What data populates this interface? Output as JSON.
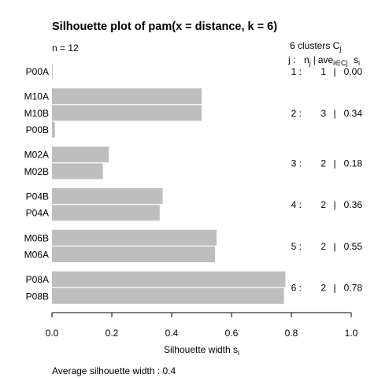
{
  "chart_data": {
    "type": "bar",
    "orientation": "horizontal",
    "title": "Silhouette plot of pam(x = distance, k = 6)",
    "n_label": "n = 12",
    "clusters_label": "6  clusters  C",
    "clusters_label_sub": "j",
    "col_header_j": "j :",
    "col_header_n": "n",
    "col_header_n_sub": "j",
    "col_header_ave": "ave",
    "col_header_ave_sub": "i∈Cj",
    "col_header_s": "s",
    "col_header_s_sub": "i",
    "xlabel": "Silhouette width s",
    "xlabel_sub": "i",
    "xlim": [
      0,
      1
    ],
    "xticks": [
      "0.0",
      "0.2",
      "0.4",
      "0.6",
      "0.8",
      "1.0"
    ],
    "xtick_values": [
      0,
      0.2,
      0.4,
      0.6,
      0.8,
      1.0
    ],
    "bar_color": "#bebebe",
    "items": [
      {
        "label": "P00A",
        "value": 0.0,
        "cluster": 1
      },
      {
        "label": "M10A",
        "value": 0.5,
        "cluster": 2
      },
      {
        "label": "M10B",
        "value": 0.5,
        "cluster": 2
      },
      {
        "label": "P00B",
        "value": 0.01,
        "cluster": 2
      },
      {
        "label": "M02A",
        "value": 0.19,
        "cluster": 3
      },
      {
        "label": "M02B",
        "value": 0.17,
        "cluster": 3
      },
      {
        "label": "P04B",
        "value": 0.37,
        "cluster": 4
      },
      {
        "label": "P04A",
        "value": 0.36,
        "cluster": 4
      },
      {
        "label": "M06B",
        "value": 0.55,
        "cluster": 5
      },
      {
        "label": "M06A",
        "value": 0.545,
        "cluster": 5
      },
      {
        "label": "P08A",
        "value": 0.78,
        "cluster": 6
      },
      {
        "label": "P08B",
        "value": 0.775,
        "cluster": 6
      }
    ],
    "clusters": [
      {
        "j": "1 :",
        "n": "1",
        "ave": "0.00"
      },
      {
        "j": "2 :",
        "n": "3",
        "ave": "0.34"
      },
      {
        "j": "3 :",
        "n": "2",
        "ave": "0.18"
      },
      {
        "j": "4 :",
        "n": "2",
        "ave": "0.36"
      },
      {
        "j": "5 :",
        "n": "2",
        "ave": "0.55"
      },
      {
        "j": "6 :",
        "n": "2",
        "ave": "0.78"
      }
    ],
    "footer": "Average silhouette width :  0.4"
  }
}
